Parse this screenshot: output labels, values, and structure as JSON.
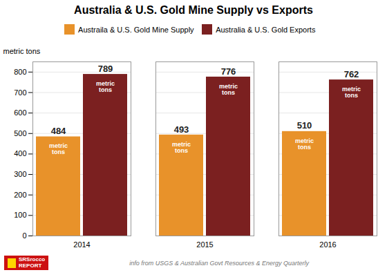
{
  "chart_data": {
    "type": "bar",
    "title": "Australia & U.S. Gold Mine Supply vs Exports",
    "categories": [
      "2014",
      "2015",
      "2016"
    ],
    "series": [
      {
        "name": "Austraila & U.S. Gold Mine Supply",
        "color": "#E8922A",
        "values": [
          484,
          493,
          510
        ]
      },
      {
        "name": "Australia & U.S. Gold Exports",
        "color": "#7B2020",
        "values": [
          789,
          776,
          762
        ]
      }
    ],
    "ylabel": "metric tons",
    "ylim": [
      0,
      850
    ],
    "yticks": [
      0,
      100,
      200,
      300,
      400,
      500,
      600,
      700,
      800
    ],
    "grid": true,
    "legend": "top",
    "data_labels": true,
    "annotations": {
      "in_bars": "metric\ntons",
      "footer": "info from USGS & Australian Govt Resources & Energy Quarterly",
      "logo": [
        "SRSrocco",
        "REPORT"
      ]
    }
  }
}
